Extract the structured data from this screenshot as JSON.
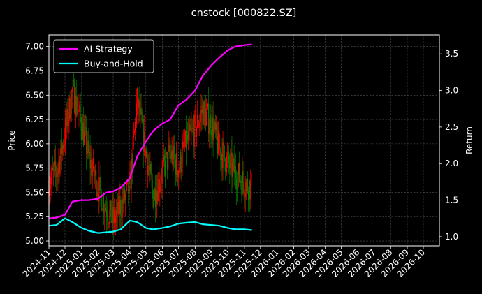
{
  "chart_data": {
    "type": "line",
    "title": "cnstock [000822.SZ]",
    "ylabel_left": "Price",
    "ylabel_right": "Return",
    "xlabel": "",
    "grid": true,
    "legend_position": "top-left",
    "colors": {
      "background": "#000000",
      "ai_strategy": "#ff00ff",
      "buy_and_hold": "#00ffff",
      "candle_up": "#ff0000",
      "candle_down": "#008000",
      "grid": "#555555"
    },
    "xlim": [
      "2024-11-01",
      "2026-10-31"
    ],
    "ylim_left": [
      4.95,
      7.12
    ],
    "ylim_right": [
      0.875,
      3.76
    ],
    "yticks_left": [
      "5.00",
      "5.25",
      "5.50",
      "5.75",
      "6.00",
      "6.25",
      "6.50",
      "6.75",
      "7.00"
    ],
    "yticks_right": [
      "1.0",
      "1.5",
      "2.0",
      "2.5",
      "3.0",
      "3.5"
    ],
    "xticks": [
      "2024-11",
      "2024-12",
      "2025-01",
      "2025-02",
      "2025-03",
      "2025-04",
      "2025-05",
      "2025-06",
      "2025-07",
      "2025-08",
      "2025-09",
      "2025-10",
      "2025-11",
      "2025-12",
      "2026-01",
      "2026-02",
      "2026-03",
      "2026-04",
      "2026-05",
      "2026-06",
      "2026-07",
      "2026-08",
      "2026-09",
      "2026-10"
    ],
    "price_series": {
      "name": "Price",
      "x": [
        "2024-11-01",
        "2024-11-15",
        "2024-12-01",
        "2024-12-15",
        "2025-01-01",
        "2025-01-15",
        "2025-02-01",
        "2025-02-15",
        "2025-03-01",
        "2025-03-15",
        "2025-04-01",
        "2025-04-15",
        "2025-05-01",
        "2025-05-15",
        "2025-06-01",
        "2025-06-15",
        "2025-07-01",
        "2025-07-15",
        "2025-08-01",
        "2025-08-15",
        "2025-09-01",
        "2025-09-15",
        "2025-10-01",
        "2025-10-15",
        "2025-11-01",
        "2025-11-15"
      ],
      "y": [
        5.62,
        5.7,
        6.1,
        6.55,
        6.2,
        5.85,
        5.55,
        5.35,
        5.2,
        5.35,
        5.55,
        6.45,
        5.9,
        5.45,
        5.7,
        5.9,
        5.75,
        6.0,
        6.15,
        6.35,
        6.2,
        5.95,
        5.8,
        5.7,
        5.6,
        5.55
      ]
    },
    "series": [
      {
        "name": "AI Strategy",
        "axis": "right",
        "x": [
          "2024-11-01",
          "2024-11-15",
          "2024-12-01",
          "2024-12-15",
          "2025-01-01",
          "2025-01-15",
          "2025-02-01",
          "2025-02-15",
          "2025-03-01",
          "2025-03-15",
          "2025-04-01",
          "2025-04-15",
          "2025-05-01",
          "2025-05-15",
          "2025-06-01",
          "2025-06-15",
          "2025-07-01",
          "2025-07-15",
          "2025-08-01",
          "2025-08-15",
          "2025-09-01",
          "2025-09-15",
          "2025-10-01",
          "2025-10-15",
          "2025-11-01",
          "2025-11-15"
        ],
        "values": [
          1.25,
          1.26,
          1.3,
          1.48,
          1.5,
          1.5,
          1.52,
          1.6,
          1.62,
          1.67,
          1.8,
          2.1,
          2.3,
          2.45,
          2.55,
          2.6,
          2.8,
          2.87,
          3.0,
          3.2,
          3.35,
          3.45,
          3.55,
          3.6,
          3.62,
          3.63
        ]
      },
      {
        "name": "Buy-and-Hold",
        "axis": "right",
        "x": [
          "2024-11-01",
          "2024-11-15",
          "2024-12-01",
          "2024-12-15",
          "2025-01-01",
          "2025-01-15",
          "2025-02-01",
          "2025-02-15",
          "2025-03-01",
          "2025-03-15",
          "2025-04-01",
          "2025-04-15",
          "2025-05-01",
          "2025-05-15",
          "2025-06-01",
          "2025-06-15",
          "2025-07-01",
          "2025-07-15",
          "2025-08-01",
          "2025-08-15",
          "2025-09-01",
          "2025-09-15",
          "2025-10-01",
          "2025-10-15",
          "2025-11-01",
          "2025-11-15"
        ],
        "values": [
          1.15,
          1.16,
          1.25,
          1.2,
          1.12,
          1.08,
          1.05,
          1.06,
          1.07,
          1.1,
          1.22,
          1.2,
          1.12,
          1.1,
          1.12,
          1.14,
          1.18,
          1.19,
          1.2,
          1.17,
          1.16,
          1.15,
          1.12,
          1.1,
          1.1,
          1.09
        ]
      }
    ]
  }
}
